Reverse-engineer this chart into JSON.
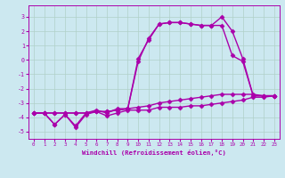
{
  "xlabel": "Windchill (Refroidissement éolien,°C)",
  "ylabel": "",
  "bg_color": "#cce8f0",
  "grid_color": "#b0d0c8",
  "line_color": "#aa00aa",
  "xlim": [
    -0.5,
    23.5
  ],
  "ylim": [
    -5.5,
    3.8
  ],
  "xticks": [
    0,
    1,
    2,
    3,
    4,
    5,
    6,
    7,
    8,
    9,
    10,
    11,
    12,
    13,
    14,
    15,
    16,
    17,
    18,
    19,
    20,
    21,
    22,
    23
  ],
  "yticks": [
    -5,
    -4,
    -3,
    -2,
    -1,
    0,
    1,
    2,
    3
  ],
  "line1_x": [
    0,
    1,
    2,
    3,
    4,
    5,
    6,
    7,
    8,
    9,
    10,
    11,
    12,
    13,
    14,
    15,
    16,
    17,
    18,
    19,
    20,
    21,
    22,
    23
  ],
  "line1_y": [
    -3.7,
    -3.7,
    -4.5,
    -3.8,
    -4.6,
    -3.7,
    -3.5,
    -3.7,
    -3.4,
    -3.4,
    -3.3,
    -3.2,
    -3.0,
    -2.9,
    -2.8,
    -2.7,
    -2.6,
    -2.5,
    -2.4,
    -2.4,
    -2.4,
    -2.4,
    -2.5,
    -2.5
  ],
  "line2_x": [
    0,
    1,
    2,
    3,
    4,
    5,
    6,
    7,
    8,
    9,
    10,
    11,
    12,
    13,
    14,
    15,
    16,
    17,
    18,
    19,
    20,
    21,
    22,
    23
  ],
  "line2_y": [
    -3.7,
    -3.7,
    -4.5,
    -3.8,
    -4.7,
    -3.8,
    -3.6,
    -3.9,
    -3.7,
    -3.5,
    -3.5,
    -3.5,
    -3.3,
    -3.3,
    -3.3,
    -3.2,
    -3.2,
    -3.1,
    -3.0,
    -2.9,
    -2.8,
    -2.6,
    -2.6,
    -2.5
  ],
  "line3_x": [
    0,
    1,
    2,
    3,
    4,
    5,
    6,
    7,
    8,
    9,
    10,
    11,
    12,
    13,
    14,
    15,
    16,
    17,
    18,
    19,
    20,
    21,
    22,
    23
  ],
  "line3_y": [
    -3.7,
    -3.7,
    -3.7,
    -3.7,
    -3.7,
    -3.7,
    -3.6,
    -3.6,
    -3.5,
    -3.4,
    -0.1,
    1.5,
    2.5,
    2.6,
    2.6,
    2.5,
    2.4,
    2.4,
    3.0,
    2.0,
    0.1,
    -2.5,
    -2.5,
    -2.5
  ],
  "line4_x": [
    0,
    1,
    2,
    3,
    4,
    5,
    6,
    7,
    8,
    9,
    10,
    11,
    12,
    13,
    14,
    15,
    16,
    17,
    18,
    19,
    20,
    21,
    22,
    23
  ],
  "line4_y": [
    -3.7,
    -3.7,
    -3.7,
    -3.7,
    -3.7,
    -3.7,
    -3.6,
    -3.6,
    -3.5,
    -3.4,
    0.1,
    1.4,
    2.5,
    2.6,
    2.6,
    2.5,
    2.4,
    2.4,
    2.4,
    0.3,
    -0.1,
    -2.5,
    -2.5,
    -2.5
  ],
  "marker": "D",
  "markersize": 2.5,
  "linewidth": 1.0
}
